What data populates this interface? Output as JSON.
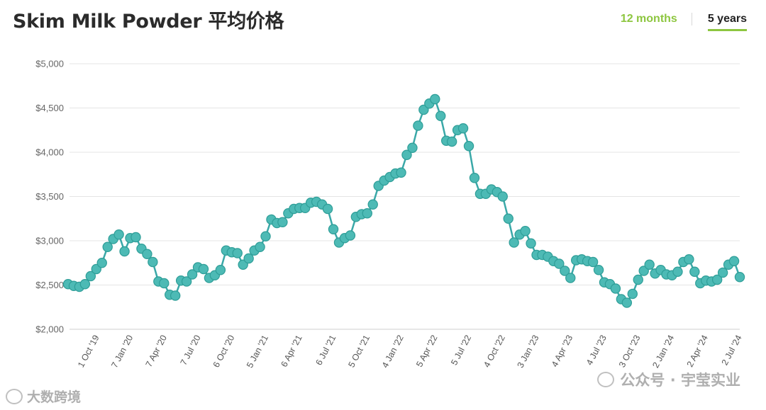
{
  "header": {
    "title": "Skim Milk Powder 平均价格",
    "tabs": [
      {
        "label": "12 months",
        "active": false
      },
      {
        "label": "5 years",
        "active": true
      }
    ]
  },
  "colors": {
    "accent": "#8dc63f",
    "series": "#3aa8a8",
    "marker_fill": "#4dbab5",
    "grid": "#e4e4e4"
  },
  "chart_data": {
    "type": "line",
    "title": "Skim Milk Powder 平均价格",
    "xlabel": "",
    "ylabel": "",
    "ylim": [
      2000,
      5000
    ],
    "y_ticks": [
      "$2,000",
      "$2,500",
      "$3,000",
      "$3,500",
      "$4,000",
      "$4,500",
      "$5,000"
    ],
    "y_tick_values": [
      2000,
      2500,
      3000,
      3500,
      4000,
      4500,
      5000
    ],
    "x_tick_labels": [
      "1 Oct '19",
      "7 Jan '20",
      "7 Apr '20",
      "7 Jul '20",
      "6 Oct '20",
      "5 Jan '21",
      "6 Apr '21",
      "6 Jul '21",
      "5 Oct '21",
      "4 Jan '22",
      "5 Apr '22",
      "5 Jul '22",
      "4 Oct '22",
      "3 Jan '23",
      "4 Apr '23",
      "4 Jul '23",
      "3 Oct '23",
      "2 Jan '24",
      "2 Apr '24",
      "2 Jul '24"
    ],
    "grid": true,
    "legend": "none",
    "series": [
      {
        "values": [
          2510,
          2490,
          2480,
          2510,
          2600,
          2680,
          2750,
          2930,
          3020,
          3070,
          2880,
          3030,
          3040,
          2910,
          2850,
          2760,
          2540,
          2520,
          2390,
          2380,
          2550,
          2540,
          2620,
          2700,
          2680,
          2580,
          2610,
          2670,
          2890,
          2870,
          2860,
          2730,
          2800,
          2890,
          2930,
          3050,
          3240,
          3200,
          3210,
          3310,
          3360,
          3370,
          3370,
          3430,
          3440,
          3410,
          3360,
          3130,
          2980,
          3030,
          3060,
          3270,
          3300,
          3310,
          3410,
          3620,
          3680,
          3720,
          3760,
          3770,
          3970,
          4050,
          4300,
          4480,
          4550,
          4600,
          4410,
          4130,
          4120,
          4250,
          4270,
          4070,
          3710,
          3530,
          3530,
          3580,
          3550,
          3500,
          3250,
          2980,
          3070,
          3110,
          2970,
          2840,
          2840,
          2820,
          2770,
          2740,
          2660,
          2580,
          2780,
          2790,
          2770,
          2760,
          2670,
          2530,
          2510,
          2460,
          2340,
          2300,
          2400,
          2560,
          2660,
          2730,
          2630,
          2670,
          2620,
          2610,
          2650,
          2760,
          2790,
          2650,
          2520,
          2550,
          2540,
          2560,
          2640,
          2730,
          2770,
          2590
        ]
      }
    ]
  },
  "watermarks": {
    "right": "公众号 · 宇莹实业",
    "left": "大数跨境"
  }
}
